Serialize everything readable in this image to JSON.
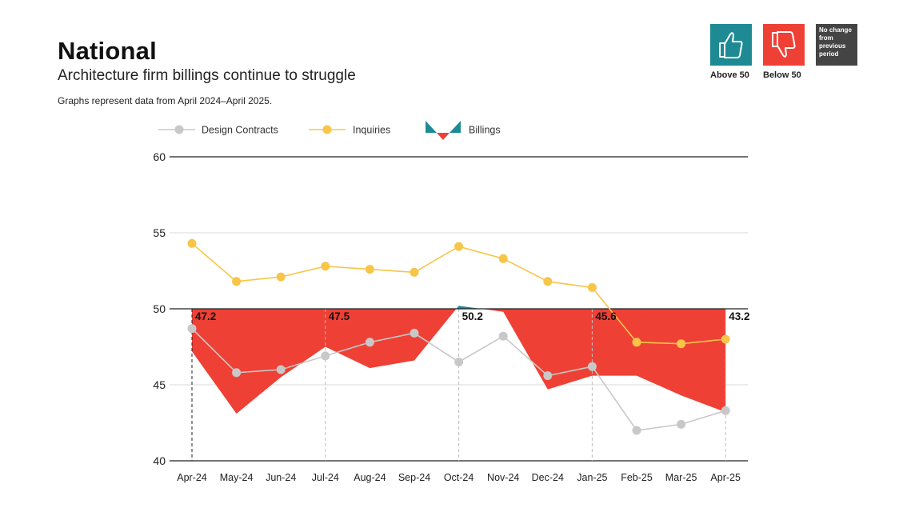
{
  "header": {
    "title": "National",
    "subtitle": "Architecture firm billings continue to struggle",
    "note": "Graphs represent data from April 2024–April 2025."
  },
  "key": {
    "above_label": "Above 50",
    "below_label": "Below 50",
    "no_change_text": "No change from previous period",
    "above_color": "#1e8a93",
    "below_color": "#ef4035",
    "no_change_color": "#444444",
    "above_icon": "thumbs-up-icon",
    "below_icon": "thumbs-down-icon"
  },
  "chart_data": {
    "type": "line",
    "title": "National",
    "xlabel": "",
    "ylabel": "",
    "ylim": [
      40,
      60
    ],
    "yticks": [
      40,
      45,
      50,
      55,
      60
    ],
    "baseline": 50,
    "categories": [
      "Apr-24",
      "May-24",
      "Jun-24",
      "Jul-24",
      "Aug-24",
      "Sep-24",
      "Oct-24",
      "Nov-24",
      "Dec-24",
      "Jan-25",
      "Feb-25",
      "Mar-25",
      "Apr-25"
    ],
    "legend": [
      "Design Contracts",
      "Inquiries",
      "Billings"
    ],
    "series": [
      {
        "name": "Design Contracts",
        "color": "#c8c8c8",
        "values": [
          48.7,
          45.8,
          46.0,
          46.9,
          47.8,
          48.4,
          46.5,
          48.2,
          45.6,
          46.2,
          42.0,
          42.4,
          43.3
        ]
      },
      {
        "name": "Inquiries",
        "color": "#f7c548",
        "values": [
          54.3,
          51.8,
          52.1,
          52.8,
          52.6,
          52.4,
          54.1,
          53.3,
          51.8,
          51.4,
          47.8,
          47.7,
          48.0
        ]
      },
      {
        "name": "Billings",
        "type": "area-from-50",
        "values": [
          47.2,
          43.1,
          45.5,
          47.5,
          46.1,
          46.6,
          50.2,
          49.8,
          44.7,
          45.6,
          45.6,
          44.3,
          43.2
        ]
      }
    ],
    "annotations": [
      {
        "category": "Apr-24",
        "label": "47.2",
        "emphasis": true
      },
      {
        "category": "Jul-24",
        "label": "47.5",
        "emphasis": false
      },
      {
        "category": "Oct-24",
        "label": "50.2",
        "emphasis": false
      },
      {
        "category": "Jan-25",
        "label": "45.6",
        "emphasis": false
      },
      {
        "category": "Apr-25",
        "label": "43.2",
        "emphasis": false
      }
    ]
  }
}
